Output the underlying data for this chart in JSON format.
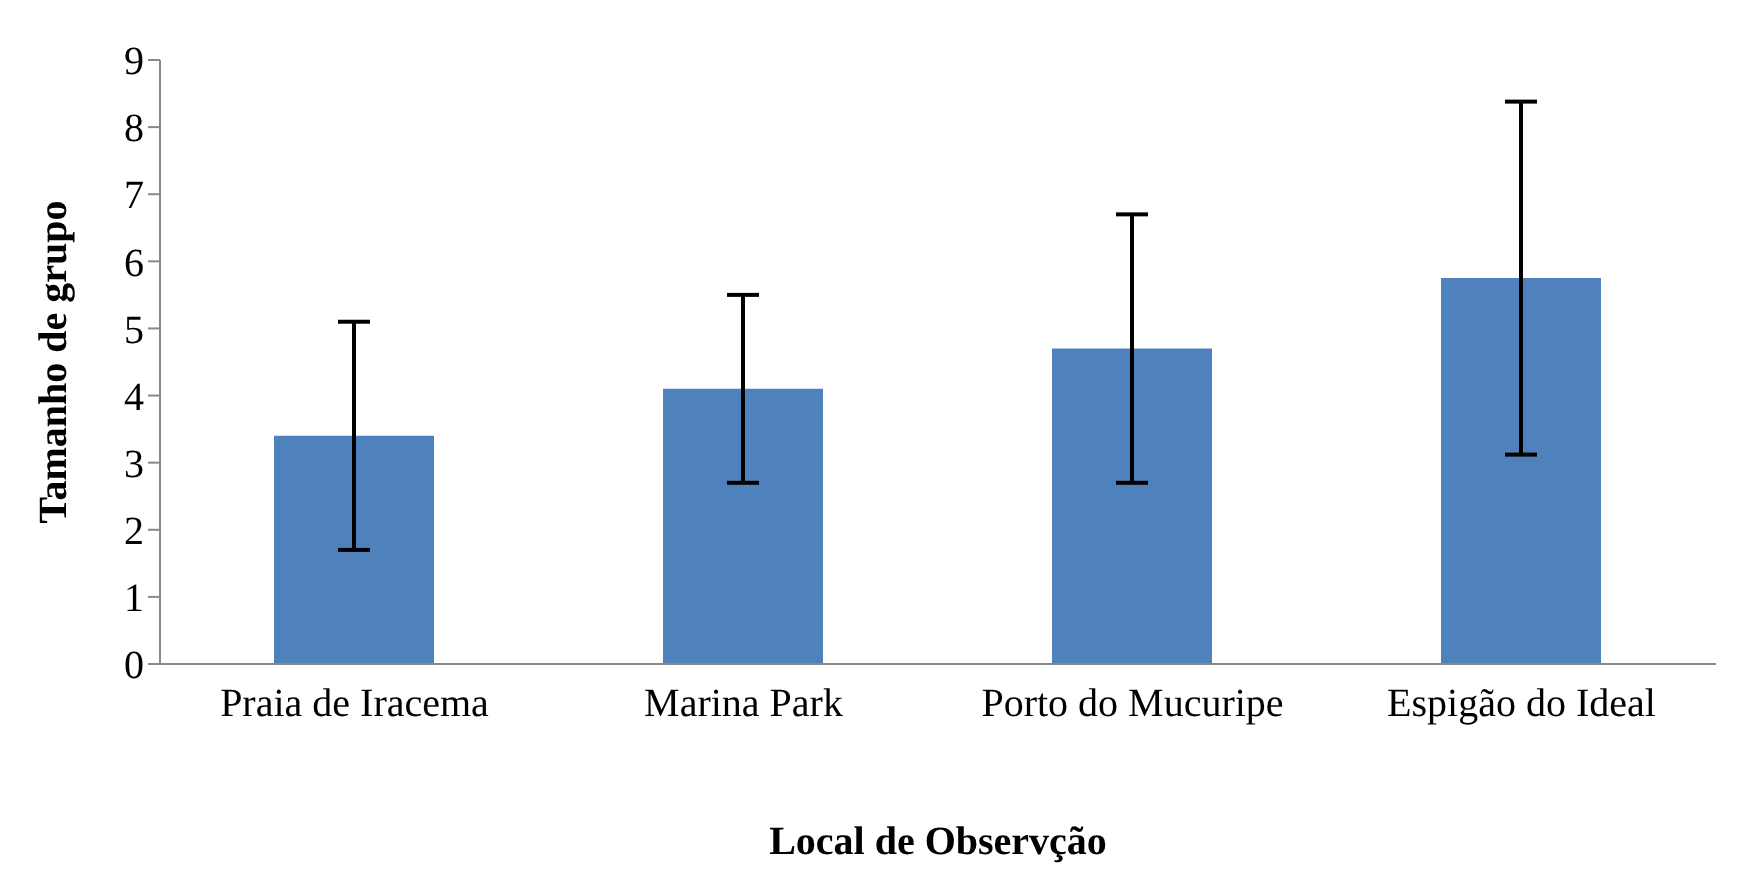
{
  "chart_data": {
    "type": "bar",
    "xlabel": "Local de Observção",
    "ylabel": "Tamanho de grupo",
    "categories": [
      "Praia de Iracema",
      "Marina Park",
      "Porto do Mucuripe",
      "Espigão do Ideal"
    ],
    "values": [
      3.4,
      4.1,
      4.7,
      5.75
    ],
    "errors": [
      1.7,
      1.4,
      2.0,
      2.63
    ],
    "color": "#4f81bd",
    "ylim": [
      0,
      9
    ],
    "yticks": [
      0,
      1,
      2,
      3,
      4,
      5,
      6,
      7,
      8,
      9
    ],
    "grid": false,
    "legend": false
  }
}
